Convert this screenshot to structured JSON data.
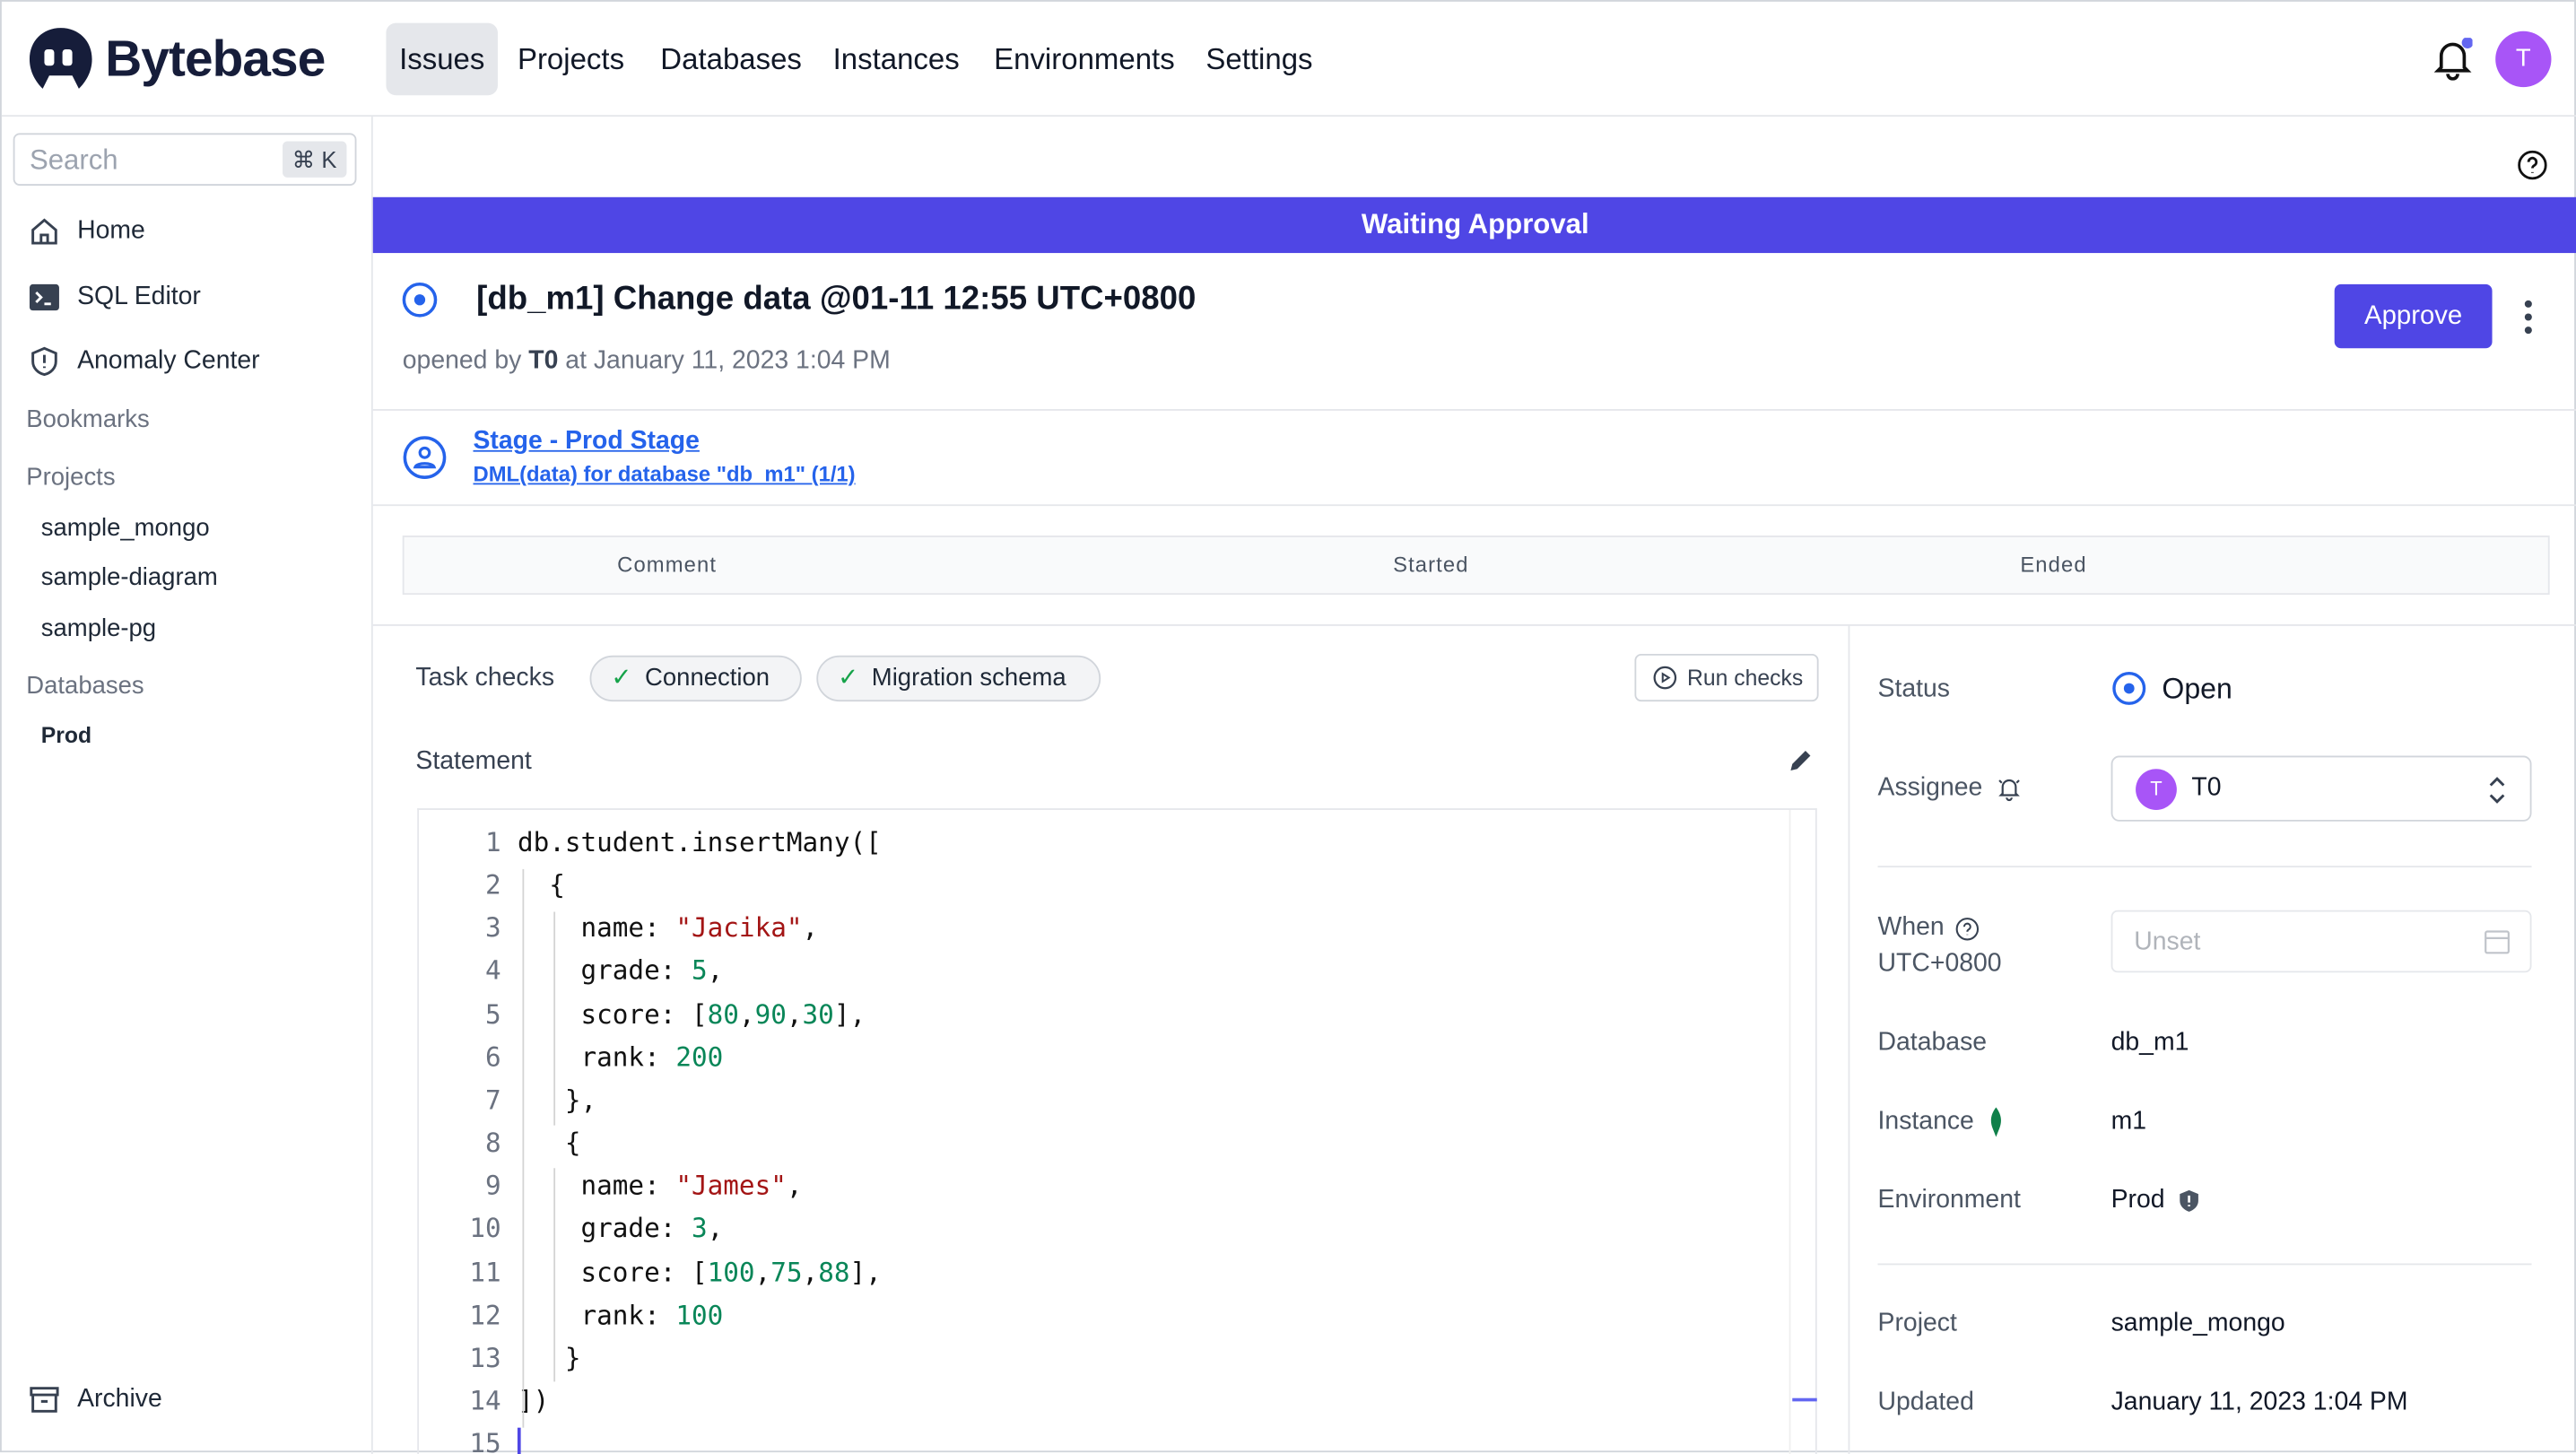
{
  "nav": {
    "brand": "Bytebase",
    "items": [
      "Issues",
      "Projects",
      "Databases",
      "Instances",
      "Environments",
      "Settings"
    ],
    "active": "Issues",
    "avatar": "T"
  },
  "sidebar": {
    "search_placeholder": "Search",
    "shortcut": "⌘ K",
    "items": [
      {
        "label": "Home",
        "icon": "home-icon"
      },
      {
        "label": "SQL Editor",
        "icon": "terminal-icon"
      },
      {
        "label": "Anomaly Center",
        "icon": "shield-icon"
      }
    ],
    "bookmarks": "Bookmarks",
    "projects_label": "Projects",
    "projects": [
      "sample_mongo",
      "sample-diagram",
      "sample-pg"
    ],
    "databases_label": "Databases",
    "databases": [
      "Prod"
    ],
    "archive": "Archive"
  },
  "banner": {
    "text": "Waiting Approval",
    "color": "#4f46e5"
  },
  "issue": {
    "title": "[db_m1] Change data @01-11 12:55 UTC+0800",
    "opened_prefix": "opened by",
    "opened_by": "T0",
    "opened_suffix": "at January 11, 2023 1:04 PM",
    "approve": "Approve"
  },
  "stage": {
    "name": "Stage - Prod Stage",
    "task": "DML(data) for database \"db_m1\" (1/1)"
  },
  "table": {
    "columns": [
      "Comment",
      "Started",
      "Ended"
    ]
  },
  "checks": {
    "label": "Task checks",
    "items": [
      "Connection",
      "Migration schema"
    ],
    "run": "Run checks"
  },
  "statement": {
    "label": "Statement",
    "lines": [
      [
        [
          "db.student.insertMany([",
          "p"
        ]
      ],
      [
        [
          "{",
          "p"
        ]
      ],
      [
        [
          "name: ",
          "p"
        ],
        [
          "\"Jacika\"",
          "s"
        ],
        [
          ",",
          "p"
        ]
      ],
      [
        [
          "grade: ",
          "p"
        ],
        [
          "5",
          "n"
        ],
        [
          ",",
          "p"
        ]
      ],
      [
        [
          "score: [",
          "p"
        ],
        [
          "80",
          "n"
        ],
        [
          ",",
          "p"
        ],
        [
          "90",
          "n"
        ],
        [
          ",",
          "p"
        ],
        [
          "30",
          "n"
        ],
        [
          "],",
          "p"
        ]
      ],
      [
        [
          "rank: ",
          "p"
        ],
        [
          "200",
          "n"
        ]
      ],
      [
        [
          "},",
          "p"
        ]
      ],
      [
        [
          "{",
          "p"
        ]
      ],
      [
        [
          "name: ",
          "p"
        ],
        [
          "\"James\"",
          "s"
        ],
        [
          ",",
          "p"
        ]
      ],
      [
        [
          "grade: ",
          "p"
        ],
        [
          "3",
          "n"
        ],
        [
          ",",
          "p"
        ]
      ],
      [
        [
          "score: [",
          "p"
        ],
        [
          "100",
          "n"
        ],
        [
          ",",
          "p"
        ],
        [
          "75",
          "n"
        ],
        [
          ",",
          "p"
        ],
        [
          "88",
          "n"
        ],
        [
          "],",
          "p"
        ]
      ],
      [
        [
          "rank: ",
          "p"
        ],
        [
          "100",
          "n"
        ]
      ],
      [
        [
          "}",
          "p"
        ]
      ],
      [
        [
          "])",
          "p"
        ]
      ],
      [
        [
          "",
          "p"
        ]
      ]
    ],
    "indent": [
      0,
      1,
      2,
      2,
      2,
      2,
      1.5,
      1.5,
      2,
      2,
      2,
      2,
      1.5,
      0,
      0
    ]
  },
  "details": {
    "status_label": "Status",
    "status": "Open",
    "assignee_label": "Assignee",
    "assignee": "T0",
    "assignee_avatar": "T",
    "when_label": "When",
    "timezone": "UTC+0800",
    "when_placeholder": "Unset",
    "database_label": "Database",
    "database": "db_m1",
    "instance_label": "Instance",
    "instance": "m1",
    "environment_label": "Environment",
    "environment": "Prod",
    "project_label": "Project",
    "project": "sample_mongo",
    "updated_label": "Updated",
    "updated": "January 11, 2023 1:04 PM"
  }
}
